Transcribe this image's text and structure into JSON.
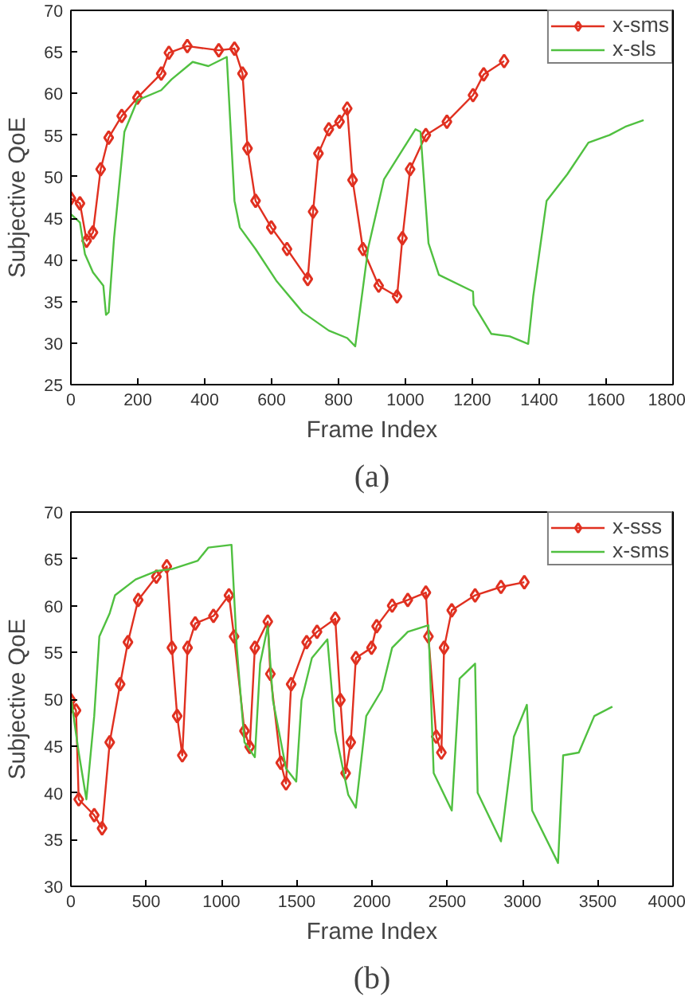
{
  "chart_data": [
    {
      "type": "line",
      "xlabel": "Frame Index",
      "ylabel": "Subjective QoE",
      "annotations": [
        "(a)"
      ],
      "xlim": [
        0,
        1800
      ],
      "ylim": [
        25,
        70
      ],
      "xticks": [
        0,
        200,
        400,
        600,
        800,
        1000,
        1200,
        1400,
        1600,
        1800
      ],
      "yticks": [
        25,
        30,
        35,
        40,
        45,
        50,
        55,
        60,
        65,
        70
      ],
      "grid": false,
      "legend": "top right",
      "series": [
        {
          "name": "x-sms",
          "color": "#e03020",
          "marker": "diamond",
          "x": [
            0,
            27,
            47,
            66,
            89,
            113,
            152,
            199,
            270,
            293,
            348,
            442,
            489,
            513,
            528,
            552,
            599,
            646,
            708,
            724,
            740,
            771,
            803,
            826,
            842,
            873,
            920,
            975,
            991,
            1014,
            1061,
            1124,
            1202,
            1234,
            1295
          ],
          "values": [
            47.4,
            46.8,
            42.3,
            43.3,
            50.9,
            54.7,
            57.3,
            59.5,
            62.4,
            64.9,
            65.7,
            65.2,
            65.4,
            62.4,
            53.4,
            47.1,
            43.9,
            41.3,
            37.7,
            45.8,
            52.8,
            55.7,
            56.6,
            58.2,
            49.6,
            41.3,
            36.9,
            35.6,
            42.6,
            50.9,
            55.0,
            56.6,
            59.8,
            62.3,
            63.9
          ]
        },
        {
          "name": "x-sls",
          "color": "#50c040",
          "marker": "none",
          "x": [
            0,
            27,
            42,
            66,
            97,
            105,
            113,
            129,
            160,
            199,
            270,
            301,
            364,
            411,
            466,
            489,
            505,
            552,
            614,
            693,
            771,
            826,
            850,
            889,
            936,
            1030,
            1045,
            1069,
            1100,
            1202,
            1204,
            1257,
            1312,
            1367,
            1382,
            1422,
            1484,
            1547,
            1610,
            1657,
            1712
          ],
          "values": [
            45.5,
            44.5,
            40.7,
            38.5,
            36.9,
            33.4,
            33.7,
            42.6,
            55.4,
            59.2,
            60.4,
            61.7,
            63.8,
            63.3,
            64.4,
            47.1,
            43.9,
            41.3,
            37.5,
            33.7,
            31.5,
            30.6,
            29.6,
            41.5,
            49.7,
            55.7,
            55.4,
            42.0,
            38.2,
            36.2,
            34.6,
            31.1,
            30.8,
            29.9,
            35.6,
            47.1,
            50.3,
            54.1,
            55.0,
            56.0,
            56.8
          ]
        }
      ]
    },
    {
      "type": "line",
      "xlabel": "Frame Index",
      "ylabel": "Subjective QoE",
      "annotations": [
        "(b)"
      ],
      "xlim": [
        0,
        4000
      ],
      "ylim": [
        30,
        70
      ],
      "xticks": [
        0,
        500,
        1000,
        1500,
        2000,
        2500,
        3000,
        3500,
        4000
      ],
      "yticks": [
        30,
        35,
        40,
        45,
        50,
        55,
        60,
        65,
        70
      ],
      "grid": false,
      "legend": "top right",
      "series": [
        {
          "name": "x-sss",
          "color": "#e03020",
          "marker": "diamond",
          "x": [
            0,
            34,
            52,
            155,
            207,
            258,
            327,
            379,
            447,
            568,
            637,
            671,
            706,
            740,
            775,
            826,
            947,
            1050,
            1084,
            1153,
            1188,
            1222,
            1308,
            1325,
            1394,
            1429,
            1463,
            1566,
            1635,
            1756,
            1790,
            1825,
            1859,
            1893,
            1997,
            2031,
            2134,
            2238,
            2358,
            2375,
            2427,
            2461,
            2479,
            2530,
            2685,
            2857,
            3012
          ],
          "values": [
            49.9,
            48.8,
            39.3,
            37.6,
            36.2,
            45.4,
            51.6,
            56.1,
            60.6,
            63.1,
            64.2,
            55.5,
            48.2,
            44.0,
            55.5,
            58.1,
            58.9,
            61.1,
            56.7,
            46.6,
            44.9,
            55.5,
            58.3,
            52.7,
            43.2,
            41.0,
            51.6,
            56.1,
            57.2,
            58.6,
            49.9,
            42.1,
            45.4,
            54.4,
            55.5,
            57.8,
            60.0,
            60.6,
            61.4,
            56.7,
            46.0,
            44.3,
            55.5,
            59.5,
            61.1,
            62.0,
            62.5
          ]
        },
        {
          "name": "x-sms",
          "color": "#50c040",
          "marker": "none",
          "x": [
            0,
            52,
            103,
            155,
            189,
            258,
            293,
            430,
            568,
            671,
            843,
            912,
            1067,
            1102,
            1153,
            1222,
            1257,
            1308,
            1342,
            1429,
            1497,
            1532,
            1601,
            1704,
            1756,
            1842,
            1893,
            1962,
            2066,
            2134,
            2238,
            2375,
            2410,
            2530,
            2582,
            2685,
            2702,
            2857,
            2943,
            3029,
            3064,
            3236,
            3270,
            3374,
            3477,
            3597
          ],
          "values": [
            50.2,
            44.3,
            39.3,
            48.2,
            56.7,
            59.2,
            61.1,
            62.8,
            63.7,
            63.9,
            64.8,
            66.2,
            66.5,
            55.5,
            45.4,
            43.8,
            53.8,
            57.8,
            49.9,
            42.6,
            41.2,
            49.9,
            54.4,
            56.4,
            46.6,
            39.8,
            38.4,
            48.2,
            51.0,
            55.5,
            57.2,
            57.9,
            42.1,
            38.1,
            52.2,
            53.8,
            40.0,
            34.8,
            46.0,
            49.4,
            38.1,
            32.5,
            44.0,
            44.3,
            48.2,
            49.2
          ]
        }
      ]
    }
  ]
}
